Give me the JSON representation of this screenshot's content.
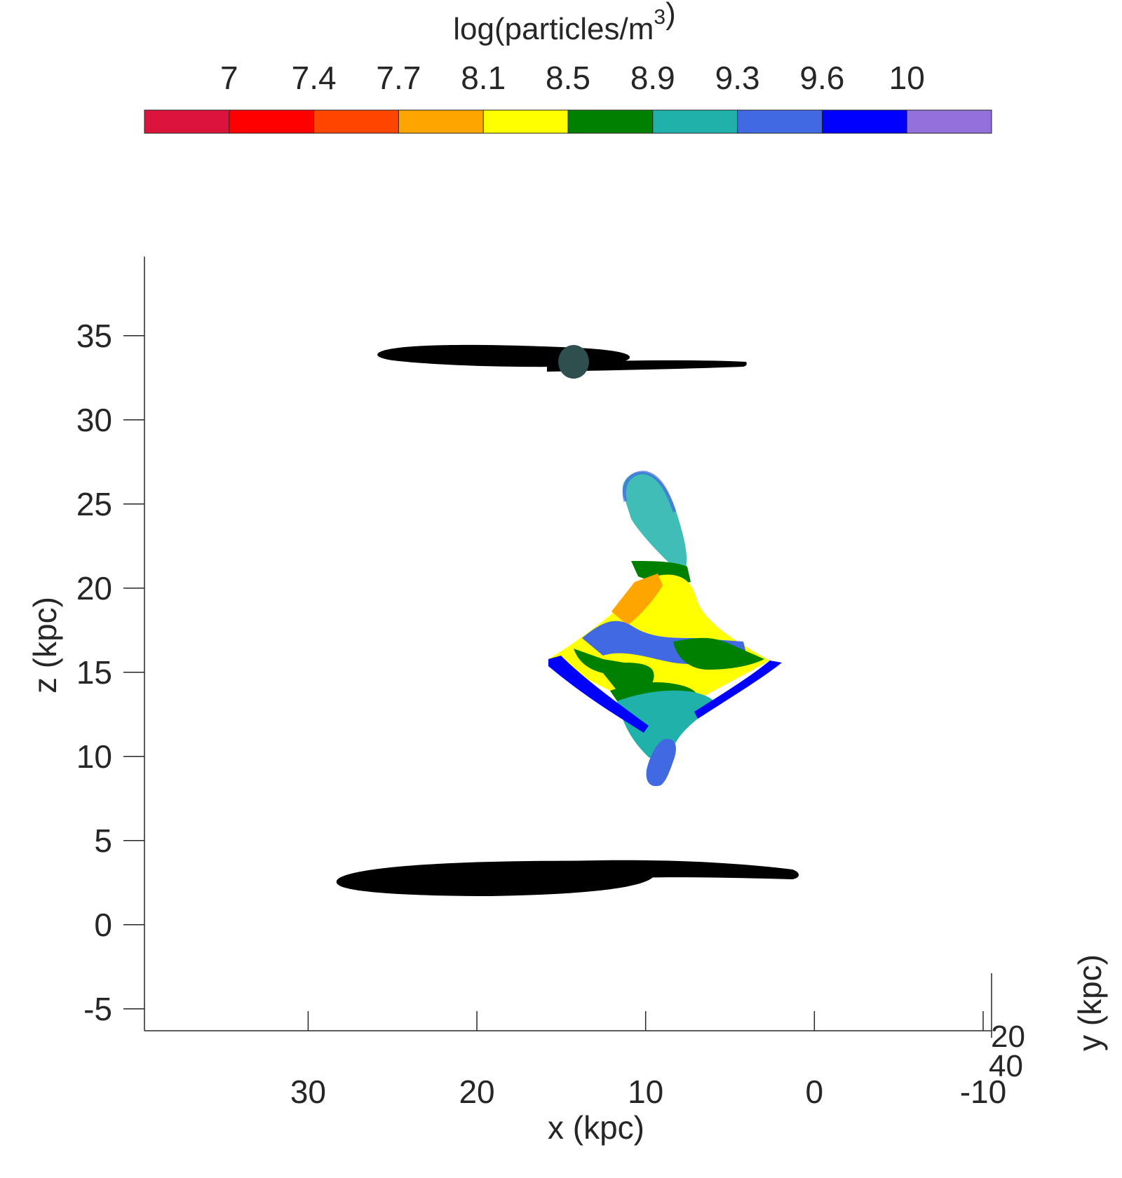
{
  "chart_data": {
    "type": "scatter",
    "title": "",
    "colorbar": {
      "label_prefix": "log(particles/m",
      "label_superscript": "3",
      "label_suffix": ")",
      "tick_labels": [
        "7",
        "7.4",
        "7.7",
        "8.1",
        "8.5",
        "8.9",
        "9.3",
        "9.6",
        "10"
      ],
      "colors": [
        "#DC143C",
        "#FF0000",
        "#FF4500",
        "#FFA500",
        "#FFFF00",
        "#008000",
        "#20B2AA",
        "#4169E1",
        "#0000FF",
        "#9370DB"
      ],
      "placement": "top"
    },
    "xlabel": "x (kpc)",
    "ylabel": "z (kpc)",
    "zlabel": "y (kpc)",
    "x_axis": {
      "lim": [
        39.7,
        -10.5
      ],
      "reversed": true,
      "ticks": [
        30,
        20,
        10,
        0,
        -10
      ]
    },
    "z_axis": {
      "lim": [
        -6.3,
        39.7
      ],
      "ticks": [
        -5,
        0,
        5,
        10,
        15,
        20,
        25,
        30,
        35
      ]
    },
    "y_axis": {
      "ticks": [
        20,
        40
      ]
    },
    "grid": false,
    "structures": [
      {
        "name": "upper black disk",
        "color": "#000000",
        "x_range": [
          26.4,
          4.0
        ],
        "z_center": 33.6
      },
      {
        "name": "upper core",
        "color": "#2F4F4F",
        "x": 13.3,
        "z": 33.5
      },
      {
        "name": "lower black disk",
        "color": "#000000",
        "x_range": [
          28.8,
          0.9
        ],
        "z_center": 2.8
      },
      {
        "name": "colored density cloud",
        "x_range": [
          15.8,
          2.0
        ],
        "z_range": [
          8.2,
          27.0
        ]
      }
    ]
  }
}
